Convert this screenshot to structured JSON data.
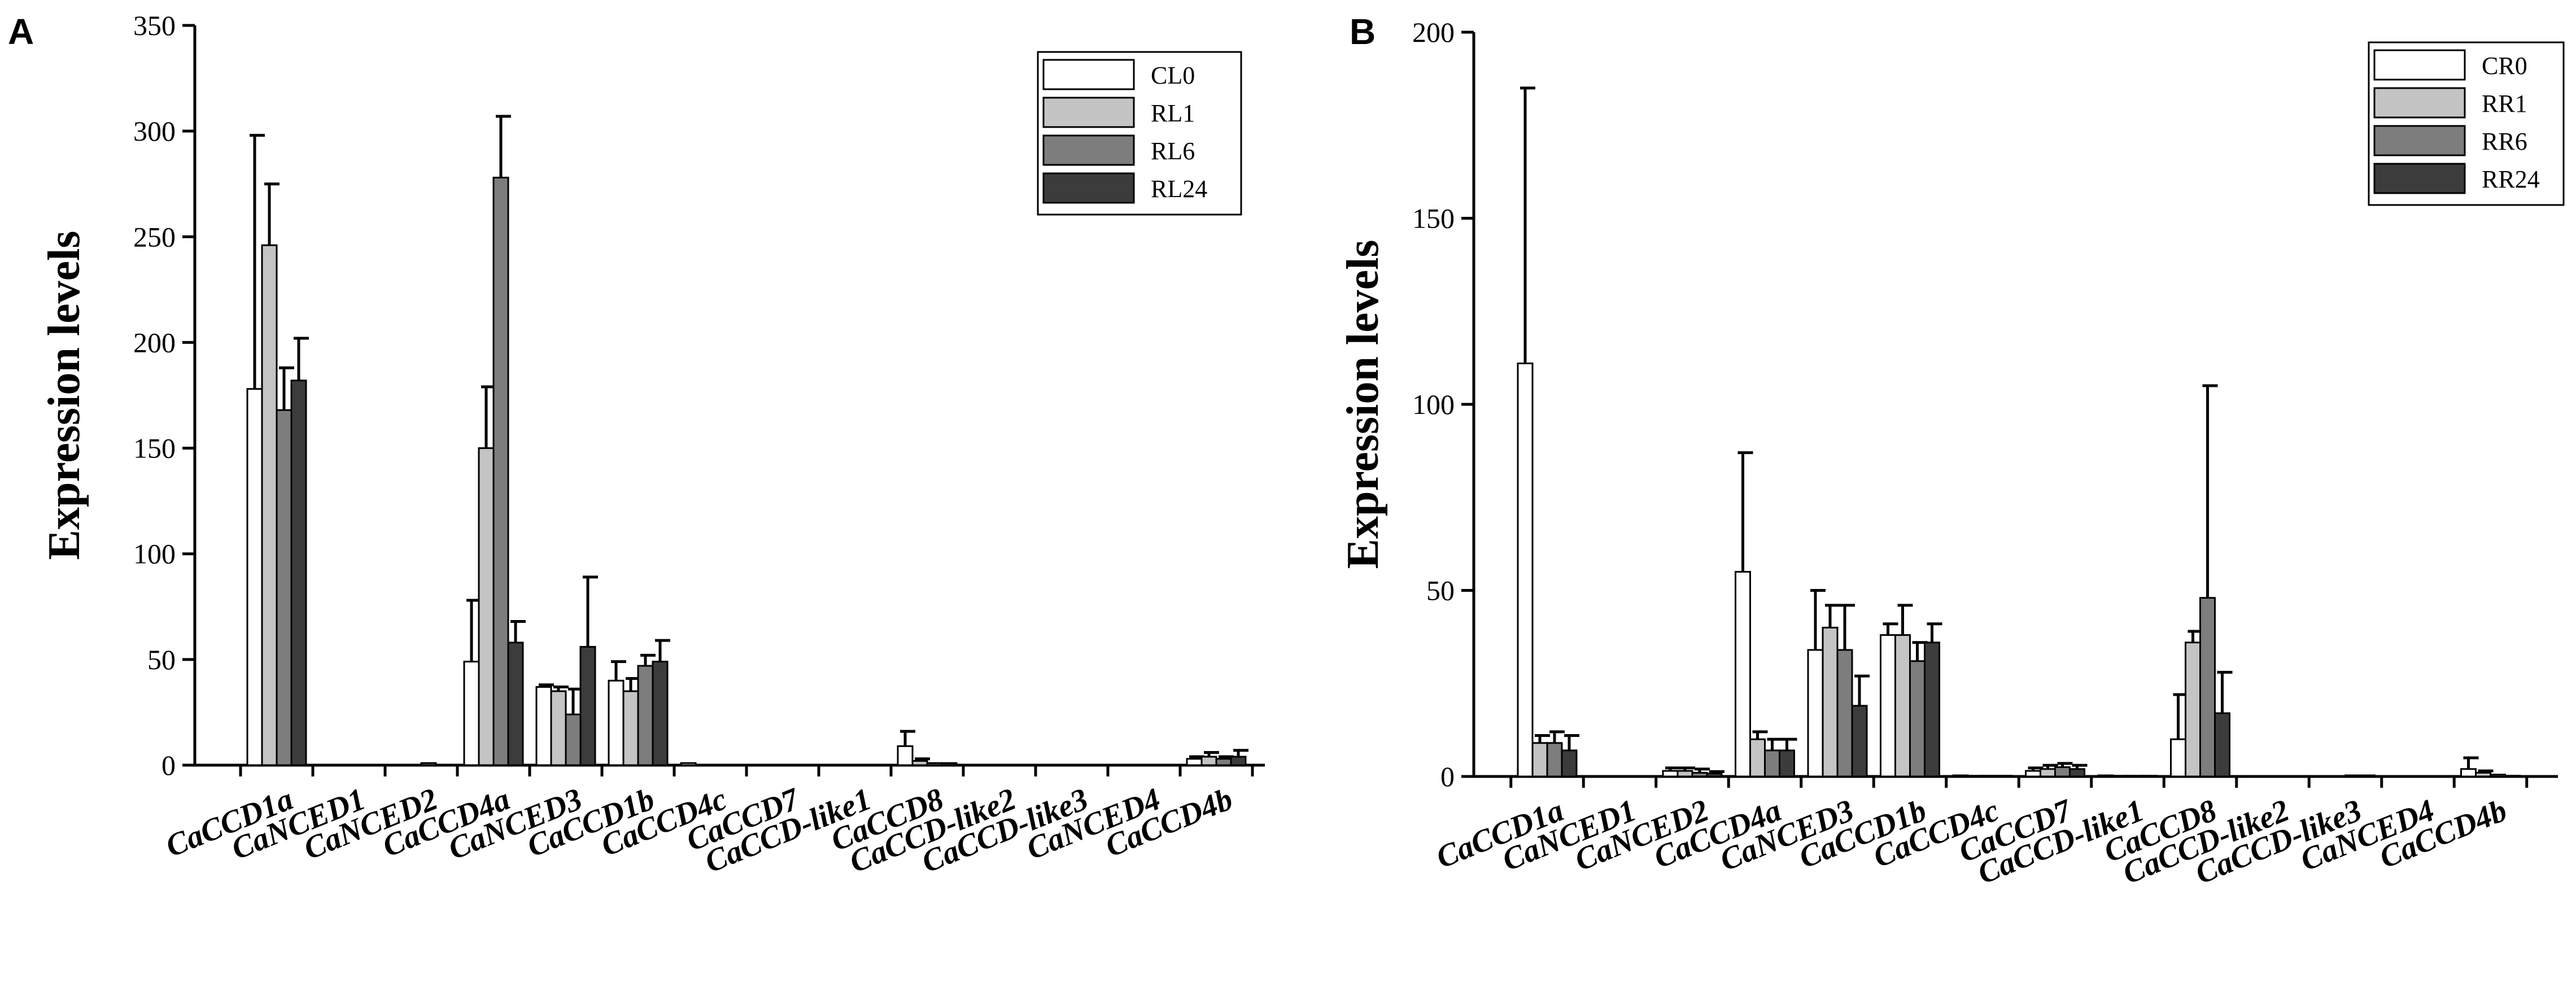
{
  "panels": [
    {
      "label": "A",
      "legend": [
        "CL0",
        "RL1",
        "RL6",
        "RL24"
      ]
    },
    {
      "label": "B",
      "legend": [
        "CR0",
        "RR1",
        "RR6",
        "RR24"
      ]
    }
  ],
  "colors": {
    "series": [
      "#ffffff",
      "#c4c4c4",
      "#7d7d7d",
      "#3c3c3c"
    ],
    "stroke": "#000000"
  },
  "chart_data": [
    {
      "type": "bar",
      "panel": "A",
      "ylabel": "Expression levels",
      "xlabel": "",
      "ylim": [
        0,
        350
      ],
      "yticks": [
        0,
        50,
        100,
        150,
        200,
        250,
        300,
        350
      ],
      "categories": [
        "CaCCD1a",
        "CaNCED1",
        "CaNCED2",
        "CaCCD4a",
        "CaNCED3",
        "CaCCD1b",
        "CaCCD4c",
        "CaCCD7",
        "CaCCD-like1",
        "CaCCD8",
        "CaCCD-like2",
        "CaCCD-like3",
        "CaNCED4",
        "CaCCD4b"
      ],
      "series": [
        {
          "name": "CL0",
          "values": [
            178,
            0,
            0,
            49,
            37,
            40,
            1,
            0,
            0,
            9,
            0,
            0,
            0,
            3
          ],
          "errors": [
            120,
            0,
            0,
            29,
            1,
            9,
            0,
            0,
            0,
            7,
            0,
            0,
            0,
            1
          ]
        },
        {
          "name": "RL1",
          "values": [
            246,
            0,
            0,
            150,
            35,
            35,
            0,
            0,
            0,
            2,
            0,
            0,
            0,
            4
          ],
          "errors": [
            29,
            0,
            0,
            29,
            2,
            6,
            0,
            0,
            0,
            1,
            0,
            0,
            0,
            2
          ]
        },
        {
          "name": "RL6",
          "values": [
            168,
            0,
            1,
            278,
            24,
            47,
            0,
            0,
            0,
            1,
            0,
            0,
            0,
            3
          ],
          "errors": [
            20,
            0,
            0,
            29,
            12,
            5,
            0,
            0,
            0,
            0,
            0,
            0,
            0,
            1
          ]
        },
        {
          "name": "RL24",
          "values": [
            182,
            0,
            0,
            58,
            56,
            49,
            0,
            0,
            0,
            1,
            0,
            0,
            0,
            4
          ],
          "errors": [
            20,
            0,
            0,
            10,
            33,
            10,
            0,
            0,
            0,
            0,
            0,
            0,
            0,
            3
          ]
        }
      ],
      "legend_position": "top-right"
    },
    {
      "type": "bar",
      "panel": "B",
      "ylabel": "Expression levels",
      "xlabel": "",
      "ylim": [
        0,
        200
      ],
      "yticks": [
        0,
        50,
        100,
        150,
        200
      ],
      "categories": [
        "CaCCD1a",
        "CaNCED1",
        "CaNCED2",
        "CaCCD4a",
        "CaNCED3",
        "CaCCD1b",
        "CaCCD4c",
        "CaCCD7",
        "CaCCD-like1",
        "CaCCD8",
        "CaCCD-like2",
        "CaCCD-like3",
        "CaNCED4",
        "CaCCD4b"
      ],
      "series": [
        {
          "name": "CR0",
          "values": [
            111,
            0,
            1.5,
            55,
            34,
            38,
            0.3,
            1.5,
            0.3,
            10,
            0,
            0,
            0,
            2
          ],
          "errors": [
            74,
            0,
            0.8,
            32,
            16,
            3,
            0,
            0.8,
            0,
            12,
            0,
            0,
            0,
            3
          ]
        },
        {
          "name": "RR1",
          "values": [
            9,
            0,
            1.5,
            10,
            40,
            38,
            0.2,
            2,
            0.2,
            36,
            0,
            0,
            0,
            1
          ],
          "errors": [
            2,
            0,
            0.8,
            2,
            6,
            8,
            0,
            1,
            0,
            3,
            0,
            0,
            0,
            0.5
          ]
        },
        {
          "name": "RR6",
          "values": [
            9,
            0,
            1,
            7,
            34,
            31,
            0.2,
            2.5,
            0.2,
            48,
            0,
            0.3,
            0,
            0.5
          ],
          "errors": [
            3,
            0,
            1,
            3,
            12,
            5,
            0,
            1,
            0,
            57,
            0,
            0,
            0,
            0
          ]
        },
        {
          "name": "RR24",
          "values": [
            7,
            0,
            0.8,
            7,
            19,
            36,
            0.2,
            2,
            0.2,
            17,
            0,
            0.3,
            0,
            0.2
          ],
          "errors": [
            4,
            0,
            0.5,
            3,
            8,
            5,
            0,
            1,
            0,
            11,
            0,
            0,
            0,
            0
          ]
        }
      ],
      "legend_position": "top-right"
    }
  ]
}
